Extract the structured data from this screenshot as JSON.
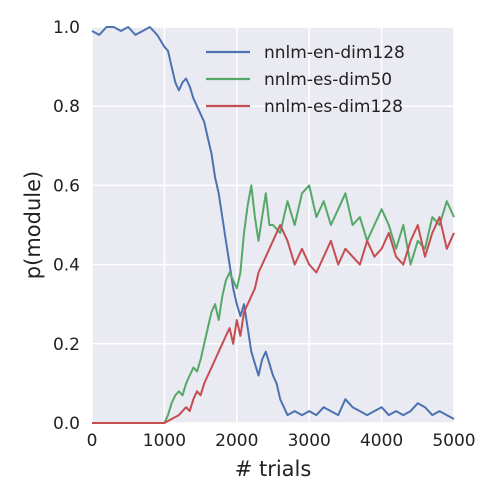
{
  "chart_data": {
    "type": "line",
    "title": "",
    "xlabel": "# trials",
    "ylabel": "p(module)",
    "xlim": [
      0,
      5000
    ],
    "ylim": [
      0,
      1.0
    ],
    "x_ticks": [
      0,
      1000,
      2000,
      3000,
      4000,
      5000
    ],
    "y_ticks": [
      0.0,
      0.2,
      0.4,
      0.6,
      0.8,
      1.0
    ],
    "x_tick_labels": [
      "0",
      "1000",
      "2000",
      "3000",
      "4000",
      "5000"
    ],
    "y_tick_labels": [
      "0.0",
      "0.2",
      "0.4",
      "0.6",
      "0.8",
      "1.0"
    ],
    "grid": true,
    "legend_position": "top-right",
    "series": [
      {
        "name": "nnlm-en-dim128",
        "color": "#4c72b0",
        "x": [
          0,
          100,
          200,
          300,
          400,
          500,
          600,
          700,
          800,
          900,
          1000,
          1050,
          1100,
          1150,
          1200,
          1250,
          1300,
          1350,
          1400,
          1450,
          1500,
          1550,
          1600,
          1650,
          1700,
          1750,
          1800,
          1850,
          1900,
          1950,
          2000,
          2050,
          2100,
          2150,
          2200,
          2250,
          2300,
          2350,
          2400,
          2450,
          2500,
          2550,
          2600,
          2650,
          2700,
          2800,
          2900,
          3000,
          3100,
          3200,
          3300,
          3400,
          3500,
          3600,
          3700,
          3800,
          3900,
          4000,
          4100,
          4200,
          4300,
          4400,
          4500,
          4600,
          4700,
          4800,
          4900,
          5000
        ],
        "y": [
          0.99,
          0.98,
          1.0,
          1.0,
          0.99,
          1.0,
          0.98,
          0.99,
          1.0,
          0.98,
          0.95,
          0.94,
          0.9,
          0.86,
          0.84,
          0.86,
          0.87,
          0.85,
          0.82,
          0.8,
          0.78,
          0.76,
          0.72,
          0.68,
          0.62,
          0.58,
          0.52,
          0.46,
          0.4,
          0.34,
          0.3,
          0.27,
          0.3,
          0.24,
          0.18,
          0.15,
          0.12,
          0.16,
          0.18,
          0.15,
          0.12,
          0.1,
          0.06,
          0.04,
          0.02,
          0.03,
          0.02,
          0.03,
          0.02,
          0.04,
          0.03,
          0.02,
          0.06,
          0.04,
          0.03,
          0.02,
          0.03,
          0.04,
          0.02,
          0.03,
          0.02,
          0.03,
          0.05,
          0.04,
          0.02,
          0.03,
          0.02,
          0.01
        ]
      },
      {
        "name": "nnlm-es-dim50",
        "color": "#55a868",
        "x": [
          0,
          100,
          200,
          300,
          400,
          500,
          600,
          700,
          800,
          900,
          1000,
          1050,
          1100,
          1150,
          1200,
          1250,
          1300,
          1350,
          1400,
          1450,
          1500,
          1550,
          1600,
          1650,
          1700,
          1750,
          1800,
          1850,
          1900,
          1950,
          2000,
          2050,
          2100,
          2150,
          2200,
          2250,
          2300,
          2350,
          2400,
          2450,
          2500,
          2600,
          2700,
          2800,
          2900,
          3000,
          3100,
          3200,
          3300,
          3400,
          3500,
          3600,
          3700,
          3800,
          3900,
          4000,
          4100,
          4200,
          4300,
          4400,
          4500,
          4600,
          4700,
          4800,
          4900,
          5000
        ],
        "y": [
          0.0,
          0.0,
          0.0,
          0.0,
          0.0,
          0.0,
          0.0,
          0.0,
          0.0,
          0.0,
          0.0,
          0.02,
          0.05,
          0.07,
          0.08,
          0.07,
          0.1,
          0.12,
          0.14,
          0.13,
          0.16,
          0.2,
          0.24,
          0.28,
          0.3,
          0.26,
          0.32,
          0.36,
          0.38,
          0.36,
          0.34,
          0.38,
          0.48,
          0.55,
          0.6,
          0.52,
          0.46,
          0.52,
          0.58,
          0.5,
          0.5,
          0.48,
          0.56,
          0.5,
          0.58,
          0.6,
          0.52,
          0.56,
          0.5,
          0.54,
          0.58,
          0.5,
          0.52,
          0.46,
          0.5,
          0.54,
          0.5,
          0.44,
          0.5,
          0.4,
          0.46,
          0.44,
          0.52,
          0.5,
          0.56,
          0.52
        ]
      },
      {
        "name": "nnlm-es-dim128",
        "color": "#c44e52",
        "x": [
          0,
          100,
          200,
          300,
          400,
          500,
          600,
          700,
          800,
          900,
          1000,
          1100,
          1200,
          1250,
          1300,
          1350,
          1400,
          1450,
          1500,
          1550,
          1600,
          1650,
          1700,
          1750,
          1800,
          1850,
          1900,
          1950,
          2000,
          2050,
          2100,
          2150,
          2200,
          2250,
          2300,
          2400,
          2500,
          2600,
          2700,
          2800,
          2900,
          3000,
          3100,
          3200,
          3300,
          3400,
          3500,
          3600,
          3700,
          3800,
          3900,
          4000,
          4100,
          4200,
          4300,
          4400,
          4500,
          4600,
          4700,
          4800,
          4900,
          5000
        ],
        "y": [
          0.0,
          0.0,
          0.0,
          0.0,
          0.0,
          0.0,
          0.0,
          0.0,
          0.0,
          0.0,
          0.0,
          0.01,
          0.02,
          0.03,
          0.04,
          0.03,
          0.06,
          0.08,
          0.07,
          0.1,
          0.12,
          0.14,
          0.16,
          0.18,
          0.2,
          0.22,
          0.24,
          0.2,
          0.26,
          0.22,
          0.28,
          0.3,
          0.32,
          0.34,
          0.38,
          0.42,
          0.46,
          0.5,
          0.46,
          0.4,
          0.44,
          0.4,
          0.38,
          0.42,
          0.46,
          0.4,
          0.44,
          0.42,
          0.4,
          0.46,
          0.42,
          0.44,
          0.48,
          0.42,
          0.4,
          0.46,
          0.5,
          0.42,
          0.48,
          0.52,
          0.44,
          0.48
        ]
      }
    ]
  }
}
